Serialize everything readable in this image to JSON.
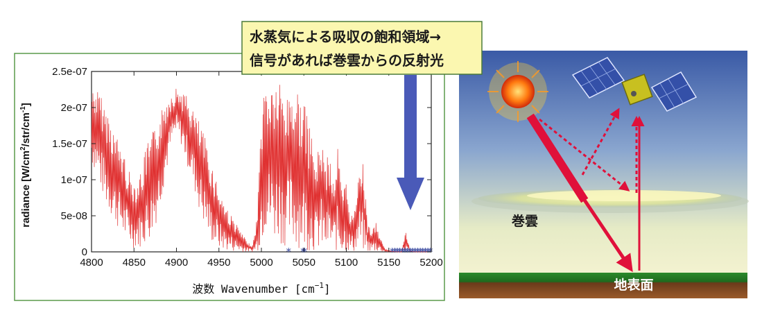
{
  "callout": {
    "line1": "水蒸気による吸収の飽和領域→",
    "line2": "信号があれば巻雲からの反射光",
    "bg_color": "#fbf7b0",
    "border_color": "#4a7a3a"
  },
  "chart_data": {
    "type": "line",
    "title": "",
    "xlabel": "波数 Wavenumber [cm⁻¹]",
    "xlabel_parts": {
      "main": "波数 Wavenumber [cm",
      "sup": "−1",
      "tail": "]"
    },
    "ylabel_parts": [
      "radiance [W/cm",
      "2",
      "/str/cm",
      "-1",
      "]"
    ],
    "xlim": [
      4800,
      5200
    ],
    "ylim": [
      0,
      2.5e-07
    ],
    "xticks": [
      "4800",
      "4850",
      "4900",
      "4950",
      "5000",
      "5050",
      "5100",
      "5150",
      "5200"
    ],
    "xtick_values": [
      4800,
      4850,
      4900,
      4950,
      5000,
      5050,
      5100,
      5150,
      5200
    ],
    "yticks": [
      "0",
      "5e-08",
      "1e-07",
      "1.5e-07",
      "2e-07",
      "2.5e-07"
    ],
    "ytick_values": [
      0,
      5e-08,
      1e-07,
      1.5e-07,
      2e-07,
      2.5e-07
    ],
    "grid": false,
    "line_color": "#e03030",
    "series": [
      {
        "values_x": [
          4800,
          4805,
          4810,
          4815,
          4820,
          4825,
          4830,
          4835,
          4840,
          4845,
          4850,
          4855,
          4860,
          4865,
          4870,
          4875,
          4880,
          4885,
          4890,
          4895,
          4900,
          4905,
          4910,
          4915,
          4920,
          4925,
          4930,
          4935,
          4940,
          4945,
          4950,
          4955,
          4960,
          4965,
          4970,
          4975,
          4980,
          4985,
          4990,
          4995,
          5000,
          5005,
          5010,
          5015,
          5020,
          5025,
          5030,
          5035,
          5040,
          5045,
          5050,
          5055,
          5060,
          5065,
          5070,
          5075,
          5080,
          5085,
          5090,
          5095,
          5100,
          5105,
          5110,
          5115,
          5120,
          5125,
          5130,
          5135,
          5140,
          5145,
          5150,
          5155,
          5160,
          5165,
          5170,
          5175,
          5180,
          5185,
          5190,
          5195,
          5200
        ],
        "values_hi": [
          2.3e-07,
          2.28e-07,
          2.2e-07,
          2.05e-07,
          1.95e-07,
          1.75e-07,
          1.6e-07,
          1.5e-07,
          1.3e-07,
          1.1e-07,
          1e-07,
          1.05e-07,
          1.2e-07,
          1.5e-07,
          1.6e-07,
          1.75e-07,
          1.9e-07,
          2.05e-07,
          2.2e-07,
          2.25e-07,
          2.28e-07,
          2.27e-07,
          2.2e-07,
          2.1e-07,
          2e-07,
          1.85e-07,
          1.7e-07,
          1.55e-07,
          1.3e-07,
          1.1e-07,
          9e-08,
          7.5e-08,
          6e-08,
          5e-08,
          4e-08,
          3e-08,
          2e-08,
          1.2e-08,
          1e-08,
          5e-08,
          2e-07,
          2.4e-07,
          2.35e-07,
          2.38e-07,
          2.4e-07,
          2.3e-07,
          2.15e-07,
          2.35e-07,
          2.3e-07,
          2.2e-07,
          2.1e-07,
          1.8e-07,
          1.6e-07,
          1.2e-07,
          1.75e-07,
          1.2e-07,
          1.4e-07,
          1e-07,
          1.5e-07,
          8e-08,
          1e-07,
          5e-08,
          6e-08,
          1.4e-07,
          1.2e-07,
          4e-08,
          3e-08,
          4e-08,
          2e-08,
          5e-09,
          2e-09,
          1e-09,
          0.0,
          0.0,
          3e-08,
          2e-09,
          0.0,
          0.0,
          0.0,
          0.0,
          0.0
        ],
        "values_lo": [
          1.2e-07,
          1.1e-07,
          9e-08,
          7e-08,
          5.5e-08,
          4.5e-08,
          3.5e-08,
          2.5e-08,
          1.5e-08,
          1e-08,
          5e-09,
          5e-09,
          8e-09,
          1.2e-08,
          2e-08,
          3.5e-08,
          6e-08,
          9e-08,
          1.2e-07,
          1.5e-07,
          1.6e-07,
          1.5e-07,
          1.3e-07,
          1.1e-07,
          9e-08,
          6.5e-08,
          4.5e-08,
          3e-08,
          1.5e-08,
          8e-09,
          4e-09,
          2e-09,
          1e-09,
          1e-09,
          0.0,
          0.0,
          0.0,
          0.0,
          0.0,
          0.0,
          1e-08,
          3e-08,
          2e-08,
          1.5e-08,
          1.5e-08,
          1e-08,
          5e-09,
          1e-08,
          5e-09,
          5e-09,
          2e-09,
          1e-09,
          1e-09,
          1e-09,
          0.0,
          0.0,
          0.0,
          0.0,
          0.0,
          0.0,
          0.0,
          0.0,
          0.0,
          0.0,
          0.0,
          0.0,
          0.0,
          0.0,
          0.0,
          0.0,
          0.0,
          0.0,
          0.0,
          0.0,
          0.0,
          0.0,
          0.0,
          0.0,
          0.0,
          0.0,
          0.0
        ]
      }
    ],
    "markers": {
      "symbol": "*",
      "color": "#3a4aa0",
      "x": [
        5032,
        5049,
        5051,
        5154,
        5157,
        5160,
        5163,
        5166,
        5169,
        5172,
        5175,
        5178,
        5181,
        5184,
        5187,
        5190,
        5193,
        5196,
        5199
      ],
      "y": [
        0,
        0,
        0,
        0,
        0,
        0,
        0,
        0,
        0,
        0,
        0,
        0,
        0,
        0,
        0,
        0,
        0,
        0,
        0
      ]
    }
  },
  "scene": {
    "cloud_label": "巻雲",
    "ground_label": "地表面",
    "sky_color_top": "#3d5ca8",
    "sky_color_bottom": "#e9ecc0",
    "ground_color": "#2a7a2a",
    "ray_color": "#e0103a",
    "arrow_color": "#4a5ab8"
  }
}
